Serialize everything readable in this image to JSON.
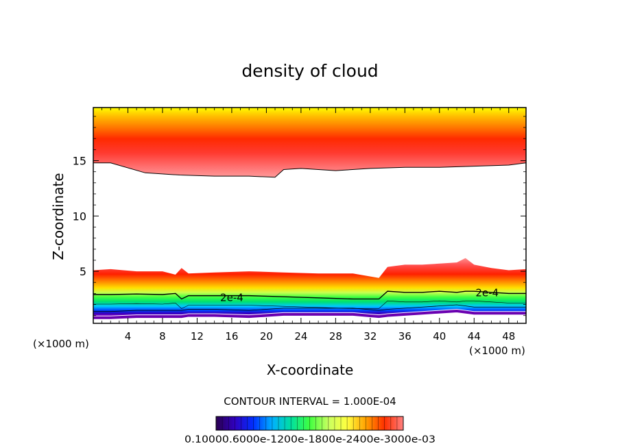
{
  "chart_data": {
    "type": "heatmap",
    "title": "density of cloud",
    "xlabel": "X-coordinate",
    "ylabel": "Z-coordinate",
    "x_unit_label_left": "(×1000 m)",
    "x_unit_label_right": "(×1000 m)",
    "xlim": [
      0,
      50
    ],
    "ylim": [
      0.3,
      19.8
    ],
    "x_ticks": [
      4,
      8,
      12,
      16,
      20,
      24,
      28,
      32,
      36,
      40,
      44,
      48
    ],
    "y_ticks": [
      5,
      10,
      15
    ],
    "contour_interval_text": "CONTOUR INTERVAL = 1.000E-04",
    "contour_labels": [
      {
        "text": "2e-4",
        "x": 16,
        "z": 2.55
      },
      {
        "text": "2e-4",
        "x": 45.5,
        "z": 3.0
      }
    ],
    "colorbar_labels_text": "0.10000e-05 0.60000e-04 0.12000e-03 0.18000e-03 0.24000e-03 0.30000e-03",
    "colorbar_visible_text": "0.10000.6000e-1200e-1800e-2400e-3000e-03",
    "colorbar_range": [
      1e-06,
      0.0003
    ],
    "colormap": [
      "#1a0030",
      "#3a0090",
      "#0000ff",
      "#00c8ff",
      "#00e070",
      "#c8ff50",
      "#ffff00",
      "#ffa000",
      "#ff2000",
      "#ff7070"
    ],
    "layers": {
      "upper_cloud": {
        "x": [
          0,
          2,
          6,
          10,
          14,
          18,
          21,
          22,
          24,
          28,
          32,
          36,
          40,
          44,
          48,
          50
        ],
        "bottom_z": [
          14.8,
          14.8,
          13.9,
          13.7,
          13.6,
          13.6,
          13.5,
          14.2,
          14.3,
          14.1,
          14.3,
          14.4,
          14.4,
          14.5,
          14.6,
          14.8
        ],
        "top_z": 19.8
      },
      "lower_cloud": {
        "x": [
          0,
          2,
          5,
          8,
          9.5,
          10.2,
          11,
          14,
          18,
          22,
          26,
          30,
          33,
          34,
          36,
          38,
          40,
          42,
          43,
          44,
          46,
          48,
          50
        ],
        "top_z": [
          5.1,
          5.2,
          5.0,
          5.0,
          4.7,
          5.3,
          4.8,
          4.9,
          5.0,
          4.9,
          4.8,
          4.8,
          4.4,
          5.4,
          5.6,
          5.6,
          5.7,
          5.8,
          6.2,
          5.6,
          5.3,
          5.1,
          5.2
        ],
        "contour_2e4_z": [
          2.9,
          2.9,
          2.95,
          2.9,
          3.0,
          2.5,
          2.8,
          2.8,
          2.8,
          2.7,
          2.6,
          2.5,
          2.5,
          3.2,
          3.1,
          3.1,
          3.2,
          3.1,
          3.2,
          3.2,
          3.1,
          3.0,
          3.0
        ],
        "bottom_z": [
          1.0,
          1.0,
          1.1,
          1.1,
          1.1,
          1.1,
          1.2,
          1.2,
          1.1,
          1.3,
          1.3,
          1.3,
          1.1,
          1.2,
          1.3,
          1.4,
          1.5,
          1.6,
          1.5,
          1.4,
          1.4,
          1.4,
          1.4
        ]
      }
    }
  }
}
